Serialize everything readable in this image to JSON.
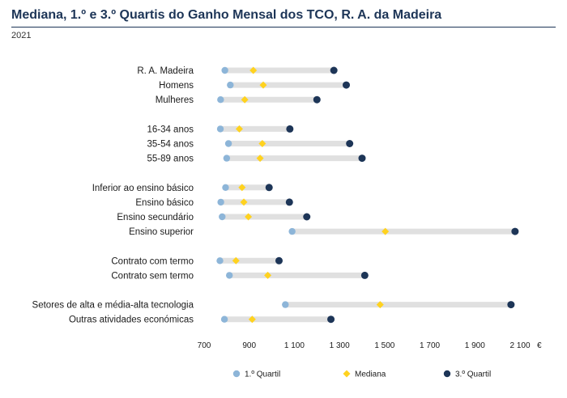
{
  "chart_data": {
    "type": "dumbbell",
    "title": "Mediana, 1.º e 3.º Quartis do Ganho Mensal dos TCO, R. A. da Madeira",
    "subtitle": "2021",
    "xlabel": "€",
    "xlim": [
      700,
      2100
    ],
    "xticks": [
      "700",
      "900",
      "1 100",
      "1 300",
      "1 500",
      "1 700",
      "1 900",
      "2 100"
    ],
    "tick_values": [
      700,
      900,
      1100,
      1300,
      1500,
      1700,
      1900,
      2100
    ],
    "groups": [
      {
        "categories": [
          {
            "label": "R. A. Madeira",
            "q1": 792,
            "median": 918,
            "q3": 1275
          },
          {
            "label": "Homens",
            "q1": 816,
            "median": 962,
            "q3": 1330
          },
          {
            "label": "Mulheres",
            "q1": 773,
            "median": 880,
            "q3": 1200
          }
        ]
      },
      {
        "categories": [
          {
            "label": "16-34 anos",
            "q1": 772,
            "median": 856,
            "q3": 1080
          },
          {
            "label": "35-54 anos",
            "q1": 808,
            "median": 958,
            "q3": 1345
          },
          {
            "label": "55-89 anos",
            "q1": 800,
            "median": 948,
            "q3": 1400
          }
        ]
      },
      {
        "categories": [
          {
            "label": "Inferior ao ensino básico",
            "q1": 795,
            "median": 868,
            "q3": 988
          },
          {
            "label": "Ensino básico",
            "q1": 774,
            "median": 876,
            "q3": 1078
          },
          {
            "label": "Ensino secundário",
            "q1": 780,
            "median": 896,
            "q3": 1155
          },
          {
            "label": "Ensino superior",
            "q1": 1090,
            "median": 1503,
            "q3": 2078
          }
        ]
      },
      {
        "categories": [
          {
            "label": "Contrato com termo",
            "q1": 770,
            "median": 841,
            "q3": 1032
          },
          {
            "label": "Contrato sem termo",
            "q1": 812,
            "median": 982,
            "q3": 1412
          }
        ]
      },
      {
        "categories": [
          {
            "label": "Setores de alta e média-alta tecnologia",
            "q1": 1060,
            "median": 1480,
            "q3": 2060
          },
          {
            "label": "Outras atividades económicas",
            "q1": 790,
            "median": 913,
            "q3": 1262
          }
        ]
      }
    ],
    "legend": {
      "position": "bottom",
      "items": [
        {
          "name": "1.º Quartil",
          "color": "#8db5d8",
          "marker": "circle"
        },
        {
          "name": "Mediana",
          "color": "#ffd21f",
          "marker": "diamond"
        },
        {
          "name": "3.º Quartil",
          "color": "#1d3557",
          "marker": "circle"
        }
      ]
    },
    "colors": {
      "bar": "#e0e0e0",
      "q1": "#8db5d8",
      "median": "#ffd21f",
      "q3": "#1d3557",
      "title": "#1d3557"
    }
  }
}
